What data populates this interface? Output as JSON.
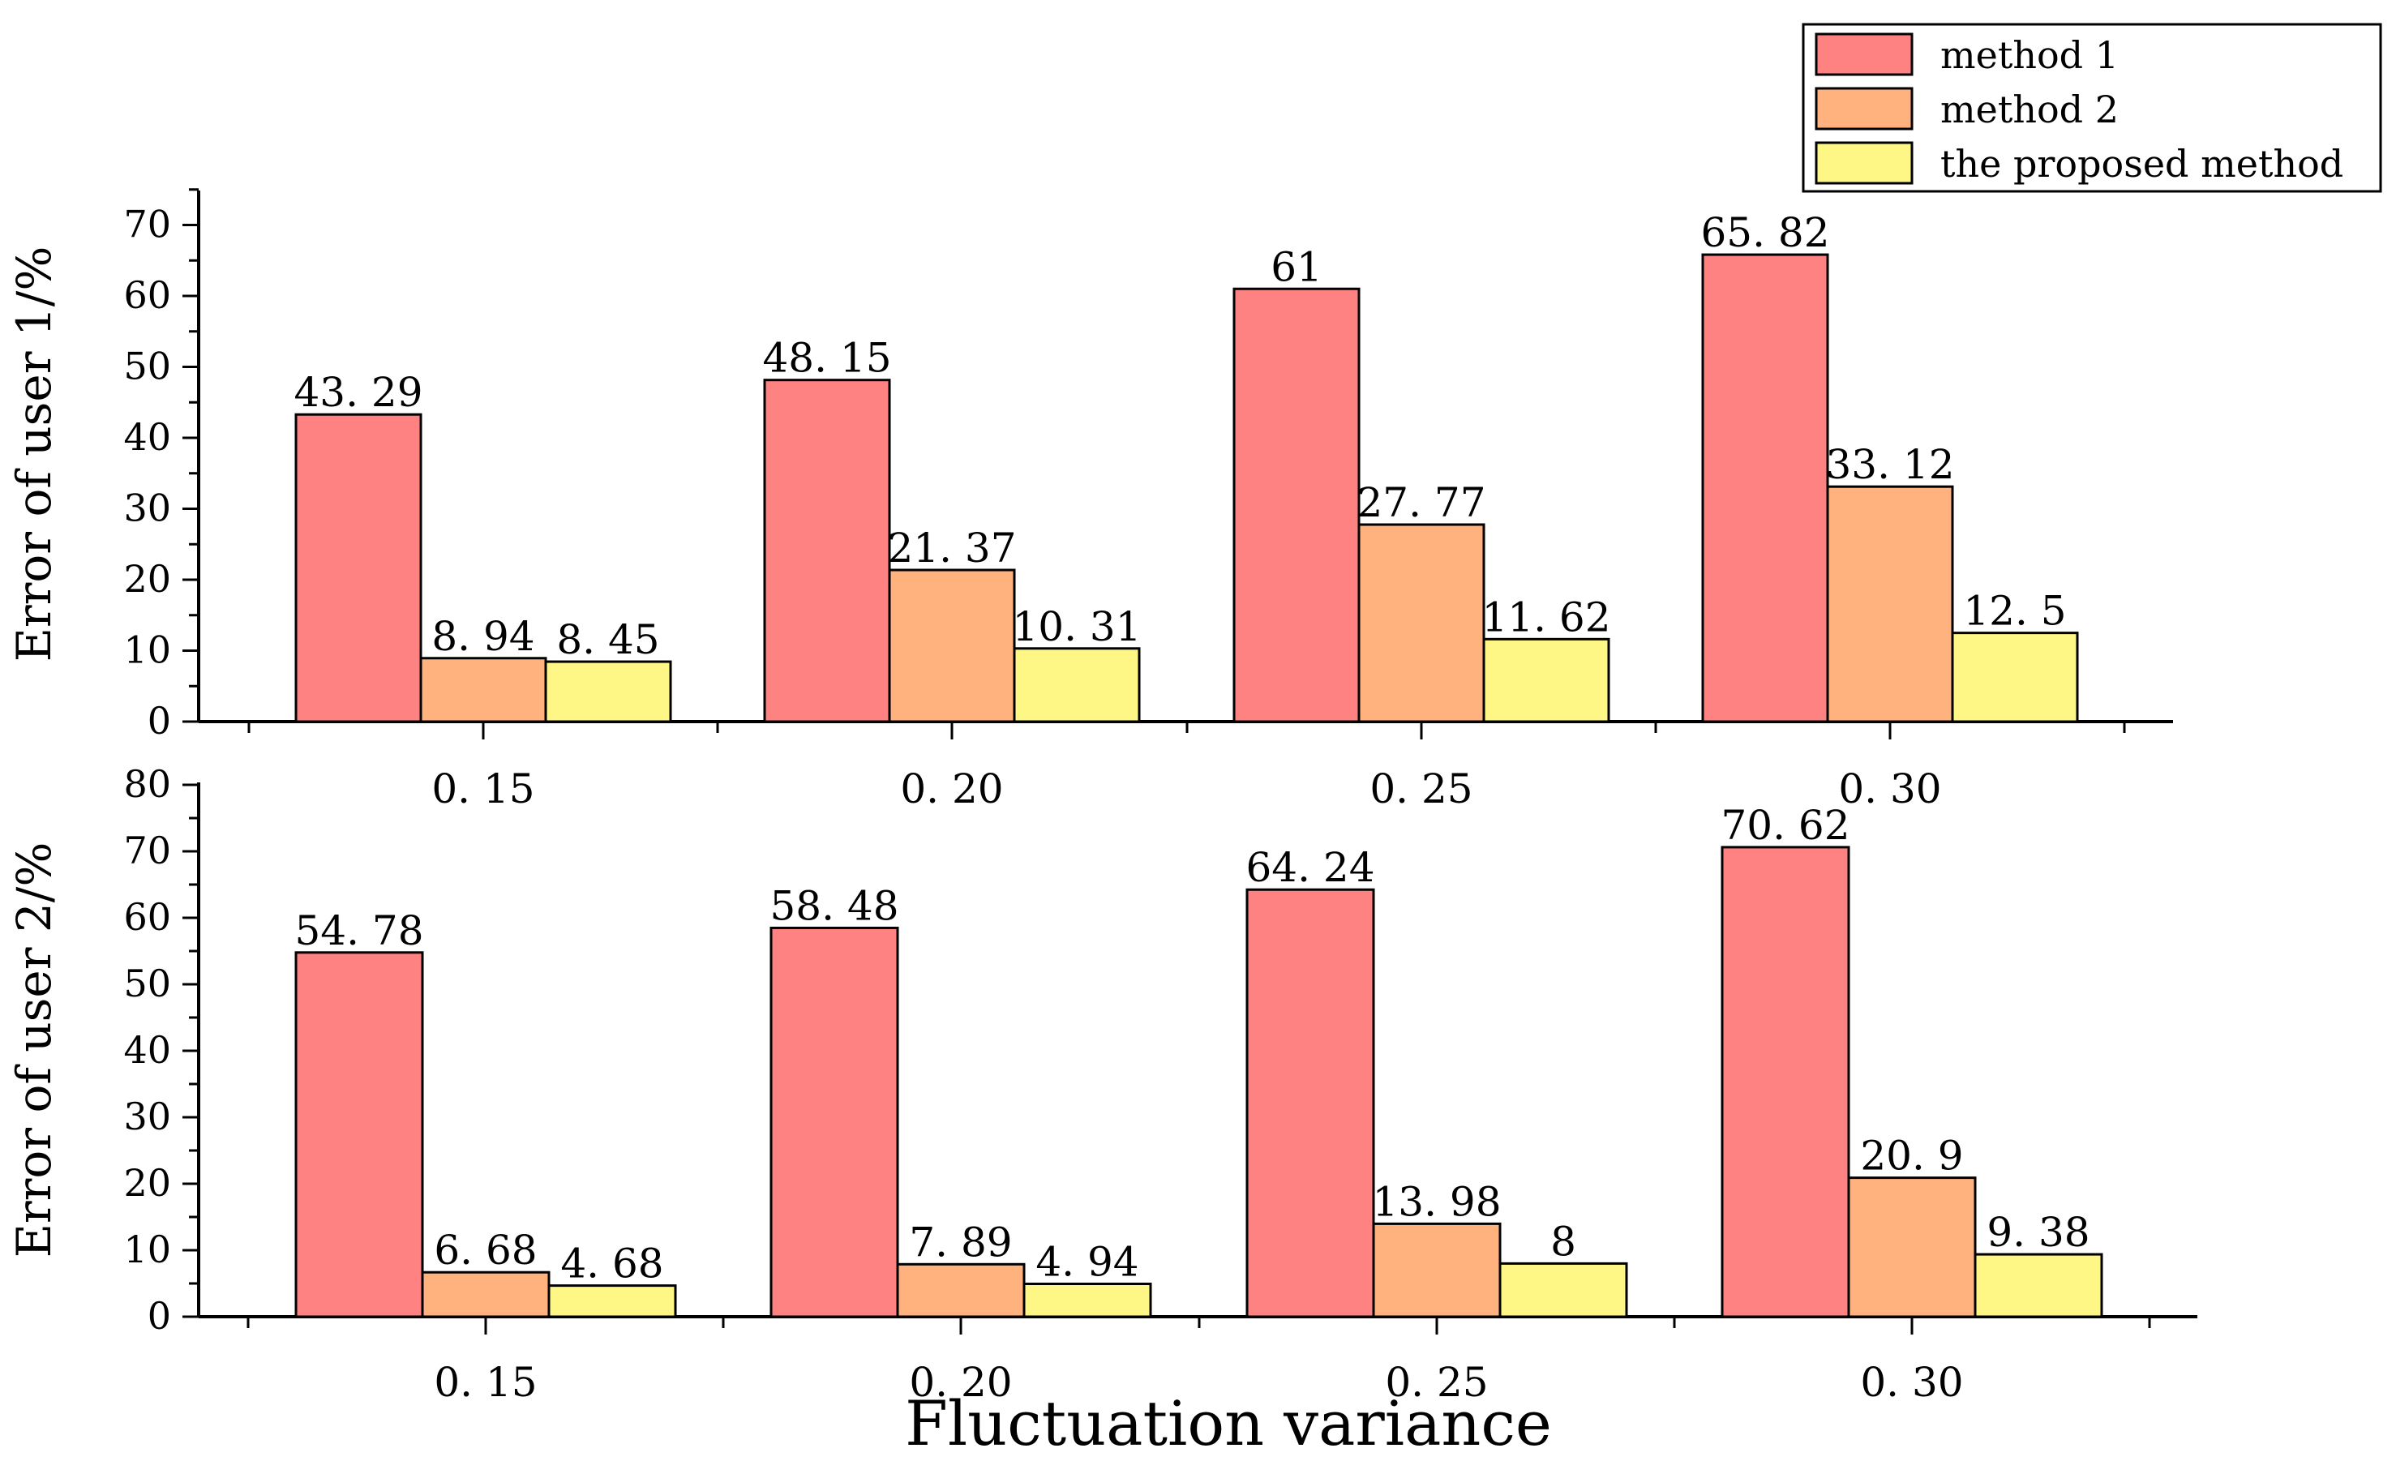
{
  "legend": {
    "items": [
      {
        "label": "method 1",
        "color": "#FF8282"
      },
      {
        "label": "method 2",
        "color": "#FFB27E"
      },
      {
        "label": "the proposed method",
        "color": "#FFF785"
      }
    ]
  },
  "xlabel": "Fluctuation variance",
  "chart_data": [
    {
      "type": "bar",
      "ylabel": "Error of user 1/%",
      "categories": [
        "0. 15",
        "0. 20",
        "0. 25",
        "0. 30"
      ],
      "ylim": [
        0,
        75
      ],
      "yticks": [
        0,
        10,
        20,
        30,
        40,
        50,
        60,
        70
      ],
      "series": [
        {
          "name": "method 1",
          "values": [
            43.29,
            48.15,
            61,
            65.82
          ],
          "labels": [
            "43. 29",
            "48. 15",
            "61",
            "65. 82"
          ]
        },
        {
          "name": "method 2",
          "values": [
            8.94,
            21.37,
            27.77,
            33.12
          ],
          "labels": [
            "8. 94",
            "21. 37",
            "27. 77",
            "33. 12"
          ]
        },
        {
          "name": "the proposed method",
          "values": [
            8.45,
            10.31,
            11.62,
            12.5
          ],
          "labels": [
            "8. 45",
            "10. 31",
            "11. 62",
            "12. 5"
          ]
        }
      ]
    },
    {
      "type": "bar",
      "ylabel": "Error of user 2/%",
      "categories": [
        "0. 15",
        "0. 20",
        "0. 25",
        "0. 30"
      ],
      "ylim": [
        0,
        80
      ],
      "yticks": [
        0,
        10,
        20,
        30,
        40,
        50,
        60,
        70,
        80
      ],
      "series": [
        {
          "name": "method 1",
          "values": [
            54.78,
            58.48,
            64.24,
            70.62
          ],
          "labels": [
            "54. 78",
            "58. 48",
            "64. 24",
            "70. 62"
          ]
        },
        {
          "name": "method 2",
          "values": [
            6.68,
            7.89,
            13.98,
            20.9
          ],
          "labels": [
            "6. 68",
            "7. 89",
            "13. 98",
            "20. 9"
          ]
        },
        {
          "name": "the proposed method",
          "values": [
            4.68,
            4.94,
            8,
            9.38
          ],
          "labels": [
            "4. 68",
            "4. 94",
            "8",
            "9. 38"
          ]
        }
      ]
    }
  ]
}
